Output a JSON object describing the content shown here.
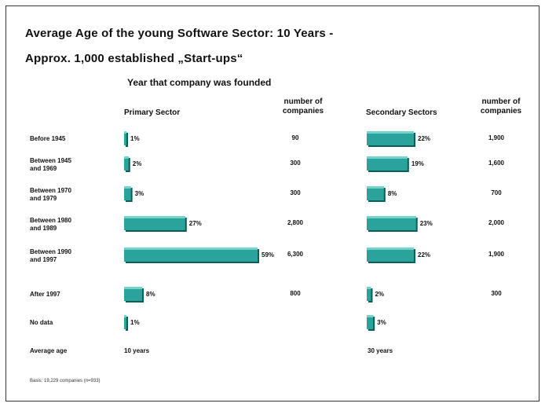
{
  "header": {
    "title_line1": "Average Age of the young Software Sector: 10 Years -",
    "title_line2": "Approx. 1,000 established „Start-ups“",
    "subtitle": "Year that company was founded"
  },
  "columns": {
    "primary": "Primary Sector",
    "secondary": "Secondary Sectors",
    "count_line1": "number of",
    "count_line2": "companies"
  },
  "rows": [
    {
      "line1": "Before 1945",
      "line2": ""
    },
    {
      "line1": "Between 1945",
      "line2": "and 1969"
    },
    {
      "line1": "Between 1970",
      "line2": "and 1979"
    },
    {
      "line1": "Between 1980",
      "line2": "and 1989"
    },
    {
      "line1": "Between 1990",
      "line2": "and 1997"
    },
    {
      "line1": "After 1997",
      "line2": ""
    },
    {
      "line1": "No data",
      "line2": ""
    }
  ],
  "average": {
    "label": "Average age",
    "primary": "10 years",
    "secondary": "30 years"
  },
  "basis": "Basis: 19,229 companies (n=933)",
  "colors": {
    "bar_fill": "#29a39b",
    "bar_top": "#72d3c9",
    "bar_shadow": "#0e5c56"
  },
  "chart_data": {
    "type": "bar",
    "orientation": "horizontal",
    "categories": [
      "Before 1945",
      "Between 1945 and 1969",
      "Between 1970 and 1979",
      "Between 1980 and 1989",
      "Between 1990 and 1997",
      "After 1997",
      "No data"
    ],
    "series": [
      {
        "name": "Primary Sector",
        "values": [
          1,
          2,
          3,
          27,
          59,
          8,
          1
        ],
        "labels": [
          "1%",
          "2%",
          "3%",
          "27%",
          "59%",
          "8%",
          "1%"
        ],
        "counts": [
          "90",
          "300",
          "300",
          "2,800",
          "6,300",
          "800",
          ""
        ]
      },
      {
        "name": "Secondary Sectors",
        "values": [
          22,
          19,
          8,
          23,
          22,
          2,
          3
        ],
        "labels": [
          "22%",
          "19%",
          "8%",
          "23%",
          "22%",
          "2%",
          "3%"
        ],
        "counts": [
          "1,900",
          "1,600",
          "700",
          "2,000",
          "1,900",
          "300",
          ""
        ]
      }
    ],
    "title": "Average Age of the young Software Sector: 10 Years - Approx. 1,000 established „Start-ups“",
    "xlabel": "",
    "ylabel": "",
    "grid": false
  }
}
